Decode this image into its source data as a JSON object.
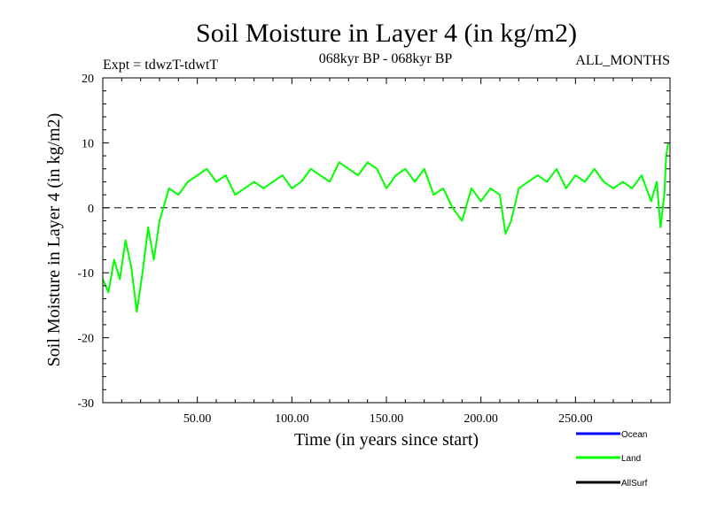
{
  "chart_data": {
    "type": "line",
    "title": "Soil Moisture in Layer 4 (in kg/m2)",
    "subtitle_left": "Expt = tdwzT-tdwtT",
    "subtitle_center": "068kyr BP - 068kyr BP",
    "subtitle_right": "ALL_MONTHS",
    "xlabel": "Time (in years since start)",
    "ylabel": "Soil Moisture in Layer 4 (in kg/m2)",
    "xlim": [
      0,
      300
    ],
    "ylim": [
      -30,
      20
    ],
    "x_ticks": [
      50,
      100,
      150,
      200,
      250
    ],
    "x_tick_labels": [
      "50.00",
      "100.00",
      "150.00",
      "200.00",
      "250.00"
    ],
    "y_ticks": [
      -30,
      -20,
      -10,
      0,
      10,
      20
    ],
    "y_tick_labels": [
      "-30",
      "-20",
      "-10",
      "0",
      "10",
      "20"
    ],
    "zero_line": "dashed",
    "grid": false,
    "legend_position": "bottom-right",
    "series": [
      {
        "name": "Ocean",
        "color": "#0000ff",
        "x": [],
        "y": []
      },
      {
        "name": "Land",
        "color": "#00ff00",
        "x": [
          0,
          3,
          6,
          9,
          12,
          15,
          18,
          21,
          24,
          27,
          30,
          35,
          40,
          45,
          50,
          55,
          60,
          65,
          70,
          75,
          80,
          85,
          90,
          95,
          100,
          105,
          110,
          115,
          120,
          125,
          130,
          135,
          140,
          145,
          150,
          155,
          160,
          165,
          170,
          175,
          180,
          185,
          190,
          195,
          200,
          205,
          210,
          213,
          216,
          220,
          225,
          230,
          235,
          240,
          245,
          250,
          255,
          260,
          265,
          270,
          275,
          280,
          285,
          290,
          293,
          295,
          297,
          298,
          299
        ],
        "y": [
          -11,
          -13,
          -8,
          -11,
          -5,
          -9,
          -16,
          -10,
          -3,
          -8,
          -2,
          3,
          2,
          4,
          5,
          6,
          4,
          5,
          2,
          3,
          4,
          3,
          4,
          5,
          3,
          4,
          6,
          5,
          4,
          7,
          6,
          5,
          7,
          6,
          3,
          5,
          6,
          4,
          6,
          2,
          3,
          0,
          -2,
          3,
          1,
          3,
          2,
          -4,
          -2,
          3,
          4,
          5,
          4,
          6,
          3,
          5,
          4,
          6,
          4,
          3,
          4,
          3,
          5,
          1,
          4,
          -3,
          2,
          8,
          10
        ]
      },
      {
        "name": "AllSurf",
        "color": "#000000",
        "x": [],
        "y": []
      }
    ]
  }
}
